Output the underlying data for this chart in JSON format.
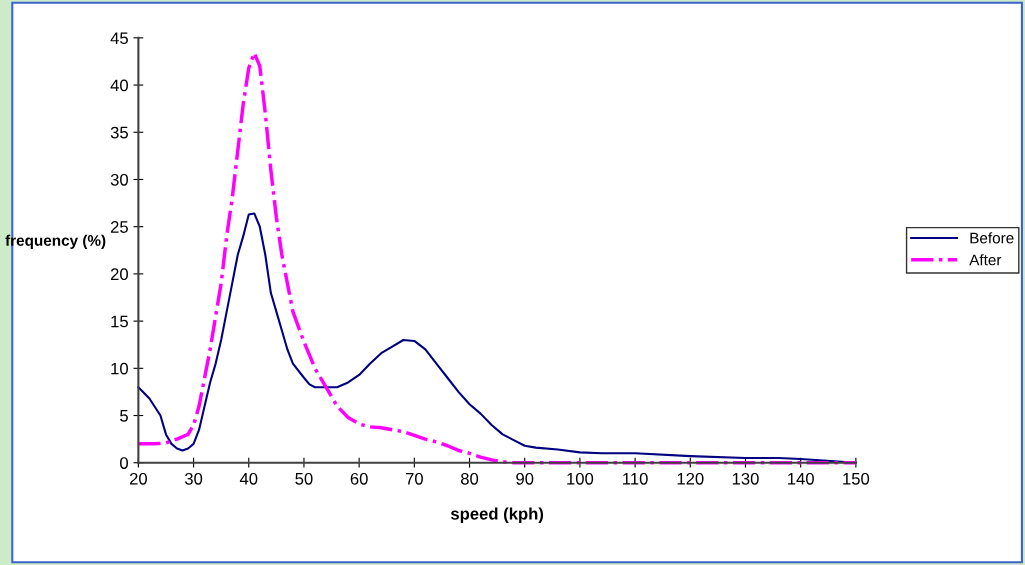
{
  "chart_data": {
    "type": "line",
    "xlabel": "speed (kph)",
    "ylabel": "frequency (%)",
    "xlim": [
      20,
      150
    ],
    "ylim": [
      0,
      45
    ],
    "xticks": [
      20,
      30,
      40,
      50,
      60,
      70,
      80,
      90,
      100,
      110,
      120,
      130,
      140,
      150
    ],
    "yticks": [
      0,
      5,
      10,
      15,
      20,
      25,
      30,
      35,
      40,
      45
    ],
    "grid": false,
    "legend": "right",
    "marker": "none",
    "series": [
      {
        "name": "Before",
        "color": "#000080",
        "line_style": "solid",
        "x": [
          20,
          22,
          24,
          25,
          26,
          27,
          28,
          29,
          30,
          31,
          32,
          33,
          34,
          35,
          36,
          37,
          38,
          39,
          40,
          41,
          42,
          43,
          44,
          45,
          46,
          47,
          48,
          50,
          51,
          52,
          54,
          56,
          58,
          60,
          62,
          64,
          66,
          68,
          70,
          72,
          74,
          76,
          78,
          80,
          82,
          84,
          86,
          88,
          90,
          92,
          96,
          100,
          104,
          110,
          120,
          130,
          136,
          140,
          150
        ],
        "values": [
          8,
          6.8,
          5,
          3,
          2,
          1.5,
          1.3,
          1.5,
          2,
          3.5,
          6,
          8.5,
          10.5,
          13,
          16,
          19,
          22,
          24,
          26.3,
          26.4,
          25,
          22,
          18,
          16,
          14,
          12,
          10.5,
          9,
          8.3,
          8,
          8,
          8,
          8.5,
          9.3,
          10.5,
          11.6,
          12.3,
          13,
          12.9,
          12,
          10.5,
          9,
          7.5,
          6.2,
          5.2,
          4,
          3,
          2.4,
          1.8,
          1.6,
          1.4,
          1.1,
          1,
          1,
          0.7,
          0.5,
          0.5,
          0.4,
          0
        ]
      },
      {
        "name": "After",
        "color": "#ff00ff",
        "line_style": "dashed",
        "x": [
          20,
          23,
          25,
          27,
          29,
          30,
          31,
          32,
          33,
          34,
          35,
          36,
          37,
          38,
          39,
          40,
          41,
          42,
          43,
          44,
          45,
          46,
          47,
          48,
          50,
          52,
          54,
          56,
          58,
          60,
          62,
          64,
          66,
          68,
          70,
          72,
          74,
          76,
          78,
          80,
          82,
          84,
          86,
          88,
          90,
          150
        ],
        "values": [
          2,
          2,
          2.1,
          2.5,
          3,
          4,
          6,
          9,
          12,
          15.5,
          19,
          24,
          28,
          33,
          38,
          41.8,
          43.4,
          42,
          37,
          31,
          26,
          22,
          19,
          16,
          12.8,
          10,
          8,
          6,
          4.8,
          4.1,
          3.8,
          3.7,
          3.5,
          3.3,
          2.9,
          2.5,
          2.2,
          1.8,
          1.3,
          1,
          0.6,
          0.3,
          0.1,
          0,
          0,
          0
        ]
      }
    ]
  }
}
